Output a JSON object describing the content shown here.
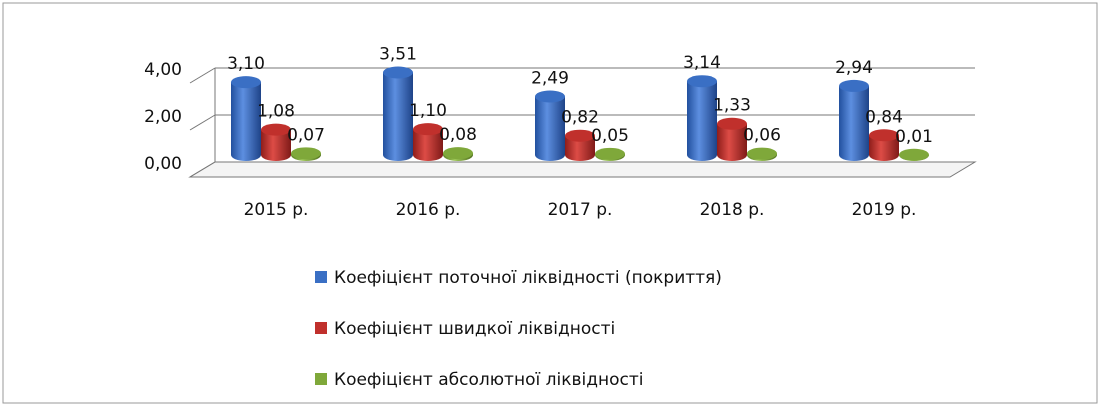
{
  "chart_data": {
    "type": "bar",
    "categories": [
      "2015 р.",
      "2016 р.",
      "2017 р.",
      "2018 р.",
      "2019 р."
    ],
    "series": [
      {
        "name": "Коефіцієнт поточної ліквідності (покриття)",
        "color": "#3a6fc4",
        "values": [
          3.1,
          3.51,
          2.49,
          3.14,
          2.94
        ],
        "value_labels": [
          "3,10",
          "3,51",
          "2,49",
          "3,14",
          "2,94"
        ]
      },
      {
        "name": "Коефіцієнт швидкої ліквідності",
        "color": "#c0302c",
        "values": [
          1.08,
          1.1,
          0.82,
          1.33,
          0.84
        ],
        "value_labels": [
          "1,08",
          "1,10",
          "0,82",
          "1,33",
          "0,84"
        ]
      },
      {
        "name": "Коефіцієнт абсолютної ліквідності",
        "color": "#7fa83a",
        "values": [
          0.07,
          0.08,
          0.05,
          0.06,
          0.01
        ],
        "value_labels": [
          "0,07",
          "0,08",
          "0,05",
          "0,06",
          "0,01"
        ]
      }
    ],
    "ylim": [
      0,
      4
    ],
    "yticks": [
      {
        "value": 0,
        "label": "0,00"
      },
      {
        "value": 2,
        "label": "2,00"
      },
      {
        "value": 4,
        "label": "4,00"
      }
    ],
    "grid": true,
    "legend": "bottom"
  }
}
